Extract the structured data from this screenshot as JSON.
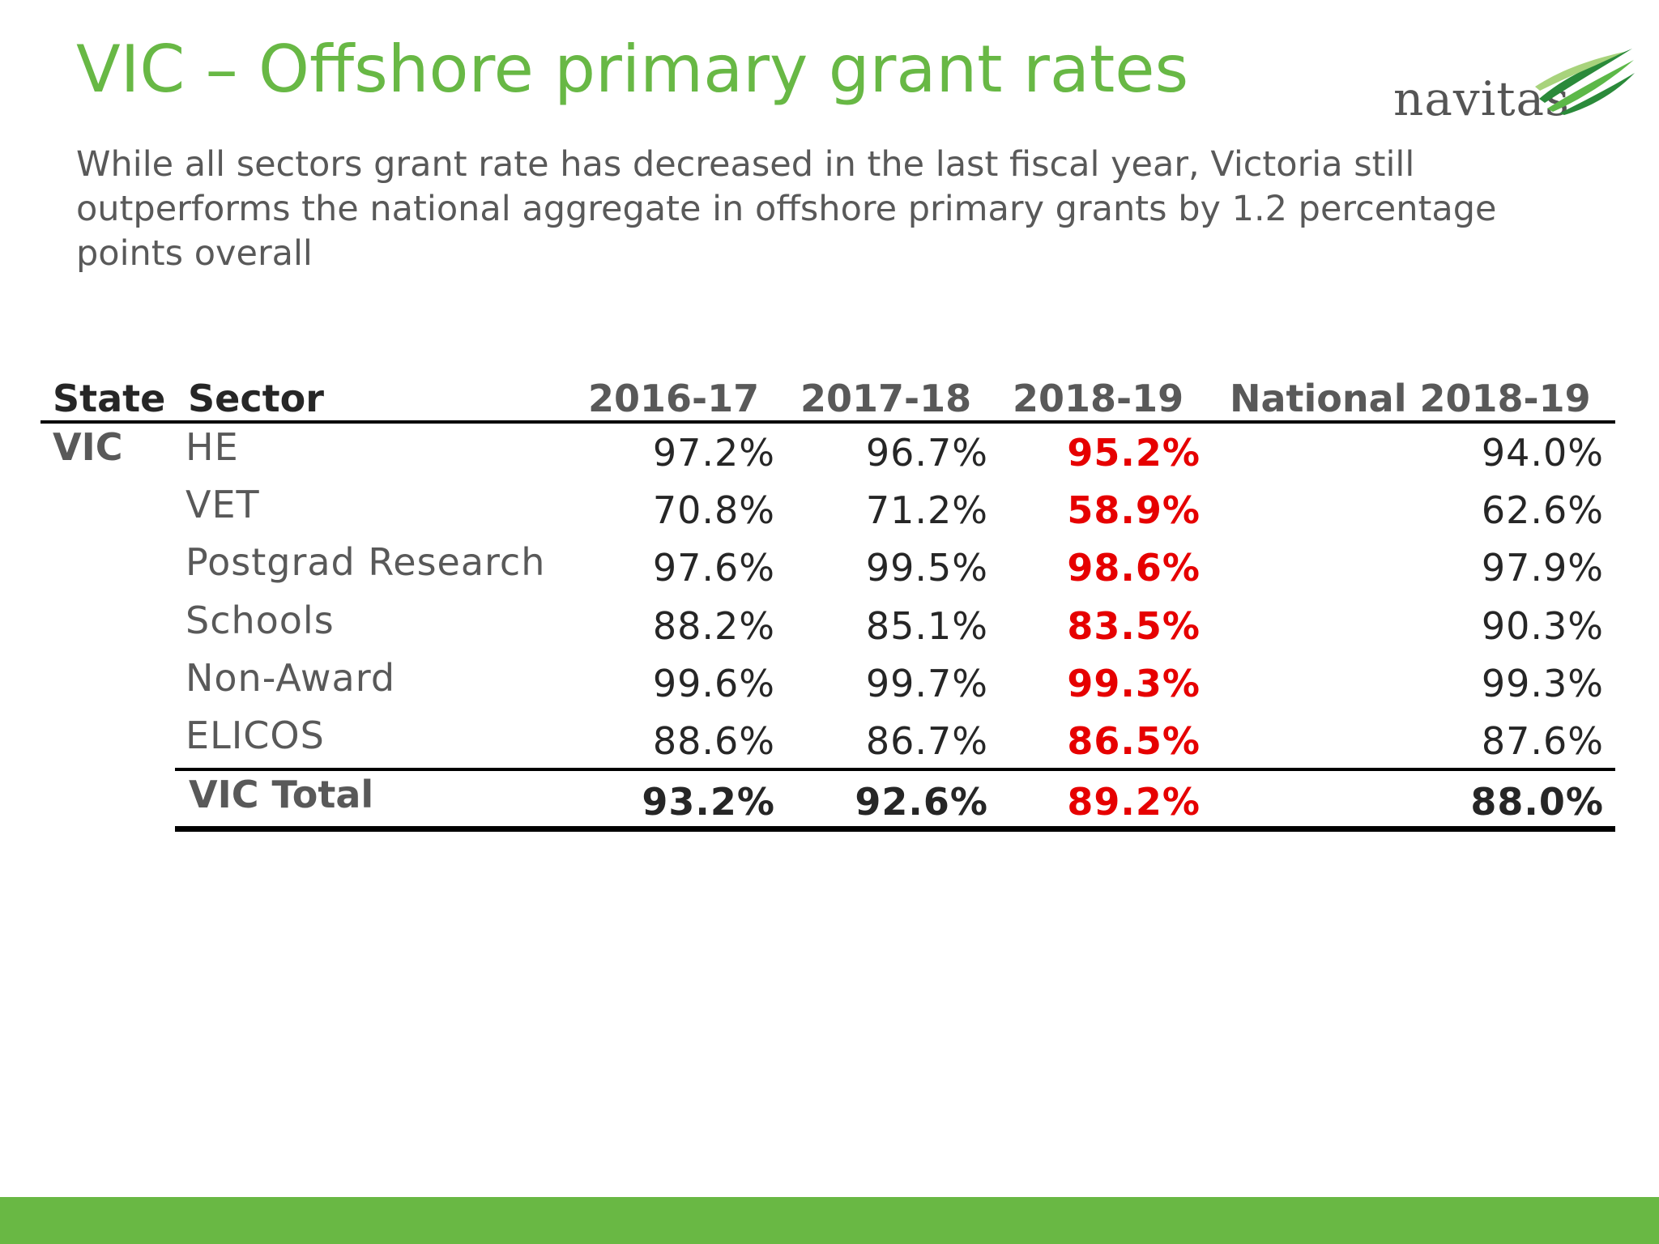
{
  "slide": {
    "title": "VIC – Offshore primary grant rates",
    "subtitle": "While all sectors grant rate has decreased in the last fiscal year, Victoria still outperforms the national aggregate in offshore primary grants by 1.2 percentage points overall"
  },
  "logo": {
    "text": "navitas",
    "icon": "navitas-swoosh-icon",
    "colors": [
      "#2a8a3a",
      "#5cb848",
      "#a8d37c"
    ]
  },
  "colors": {
    "title": "#68b845",
    "highlight": "#e60000",
    "footer_bar": "#69b844"
  },
  "table": {
    "headers": {
      "state": "State",
      "sector": "Sector",
      "col1": "2016-17",
      "col2": "2017-18",
      "col3": "2018-19",
      "col4": "National 2018-19"
    },
    "state": "VIC",
    "rows": [
      {
        "sector": "HE",
        "v1": "97.2%",
        "v2": "96.7%",
        "v3": "95.2%",
        "nat": "94.0%"
      },
      {
        "sector": "VET",
        "v1": "70.8%",
        "v2": "71.2%",
        "v3": "58.9%",
        "nat": "62.6%"
      },
      {
        "sector": "Postgrad Research",
        "v1": "97.6%",
        "v2": "99.5%",
        "v3": "98.6%",
        "nat": "97.9%"
      },
      {
        "sector": "Schools",
        "v1": "88.2%",
        "v2": "85.1%",
        "v3": "83.5%",
        "nat": "90.3%"
      },
      {
        "sector": "Non-Award",
        "v1": "99.6%",
        "v2": "99.7%",
        "v3": "99.3%",
        "nat": "99.3%"
      },
      {
        "sector": "ELICOS",
        "v1": "88.6%",
        "v2": "86.7%",
        "v3": "86.5%",
        "nat": "87.6%"
      }
    ],
    "total": {
      "label": "VIC Total",
      "v1": "93.2%",
      "v2": "92.6%",
      "v3": "89.2%",
      "nat": "88.0%"
    }
  }
}
